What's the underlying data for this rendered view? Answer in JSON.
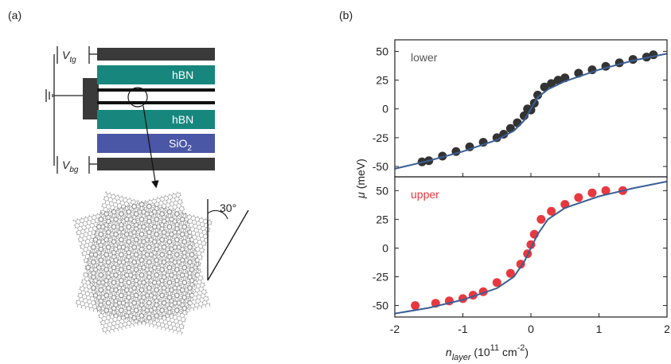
{
  "panel_labels": [
    "(a)",
    "(b)"
  ],
  "diagram": {
    "top_gate": {
      "symbol": "V",
      "subscript": "tg"
    },
    "bottom_gate": {
      "symbol": "V",
      "subscript": "bg"
    },
    "layers": {
      "upper_hbn": "hBN",
      "lower_hbn": "hBN",
      "substrate": {
        "text": "SiO",
        "subscript": "2"
      }
    },
    "angle": "30°"
  },
  "figure": {
    "ylabel": {
      "symbol": "μ",
      "unit": " (meV)"
    },
    "xlabel": {
      "symbol": "n",
      "subscript": "layer",
      "unit_start": " (10",
      "exponent": "11",
      "unit_mid": " cm",
      "unit_exponent": "-2",
      "unit_end": ")"
    }
  },
  "chart_data": [
    {
      "type": "scatter",
      "annotation": "lower",
      "xlim": [
        -2,
        2
      ],
      "ylim": [
        -59,
        60
      ],
      "xticks": [
        -2,
        -1,
        0,
        1,
        2
      ],
      "yticks": [
        -50,
        -25,
        0,
        25,
        50
      ],
      "series": [
        {
          "mode": "markers",
          "color": "#333333",
          "x": [
            -1.6,
            -1.5,
            -1.3,
            -1.1,
            -0.9,
            -0.7,
            -0.5,
            -0.4,
            -0.3,
            -0.2,
            -0.1,
            -0.05,
            0,
            0.05,
            0.1,
            0.2,
            0.3,
            0.4,
            0.5,
            0.7,
            0.9,
            1.1,
            1.3,
            1.5,
            1.7,
            1.8
          ],
          "values": [
            -46,
            -45,
            -41,
            -37,
            -33,
            -29,
            -25,
            -22,
            -17,
            -12,
            -6,
            0,
            -1,
            5,
            12,
            19,
            22,
            25,
            27,
            31,
            34,
            37,
            40,
            43,
            45,
            47
          ]
        },
        {
          "mode": "line",
          "color": "#3a5f95",
          "x": [
            -2,
            -1.5,
            -1,
            -0.5,
            -0.25,
            -0.1,
            0,
            0.1,
            0.25,
            0.5,
            1,
            1.5,
            2
          ],
          "values": [
            -52,
            -45,
            -37,
            -27,
            -19,
            -10,
            0,
            10,
            17,
            24,
            34,
            42,
            48
          ]
        }
      ]
    },
    {
      "type": "scatter",
      "annotation": "upper",
      "xlim": [
        -2,
        2
      ],
      "ylim": [
        -60,
        62
      ],
      "xticks": [
        -2,
        -1,
        0,
        1,
        2
      ],
      "yticks": [
        -50,
        -25,
        0,
        25,
        50
      ],
      "series": [
        {
          "mode": "markers",
          "color": "#e8383f",
          "x": [
            -1.7,
            -1.4,
            -1.2,
            -1.0,
            -0.85,
            -0.7,
            -0.5,
            -0.3,
            -0.15,
            -0.05,
            0,
            0.05,
            0.15,
            0.3,
            0.5,
            0.7,
            0.9,
            1.1,
            1.35
          ],
          "values": [
            -50,
            -48,
            -46,
            -44,
            -41,
            -38,
            -30,
            -22,
            -14,
            -5,
            3,
            12,
            25,
            32,
            38,
            44,
            48,
            50,
            50
          ]
        },
        {
          "mode": "line",
          "color": "#3a5f95",
          "x": [
            -2,
            -1.5,
            -1,
            -0.5,
            -0.25,
            -0.1,
            0,
            0.1,
            0.25,
            0.5,
            1,
            1.5,
            2
          ],
          "values": [
            -57,
            -52,
            -45,
            -35,
            -25,
            -12,
            0,
            12,
            25,
            35,
            45,
            52,
            58
          ]
        }
      ]
    }
  ]
}
